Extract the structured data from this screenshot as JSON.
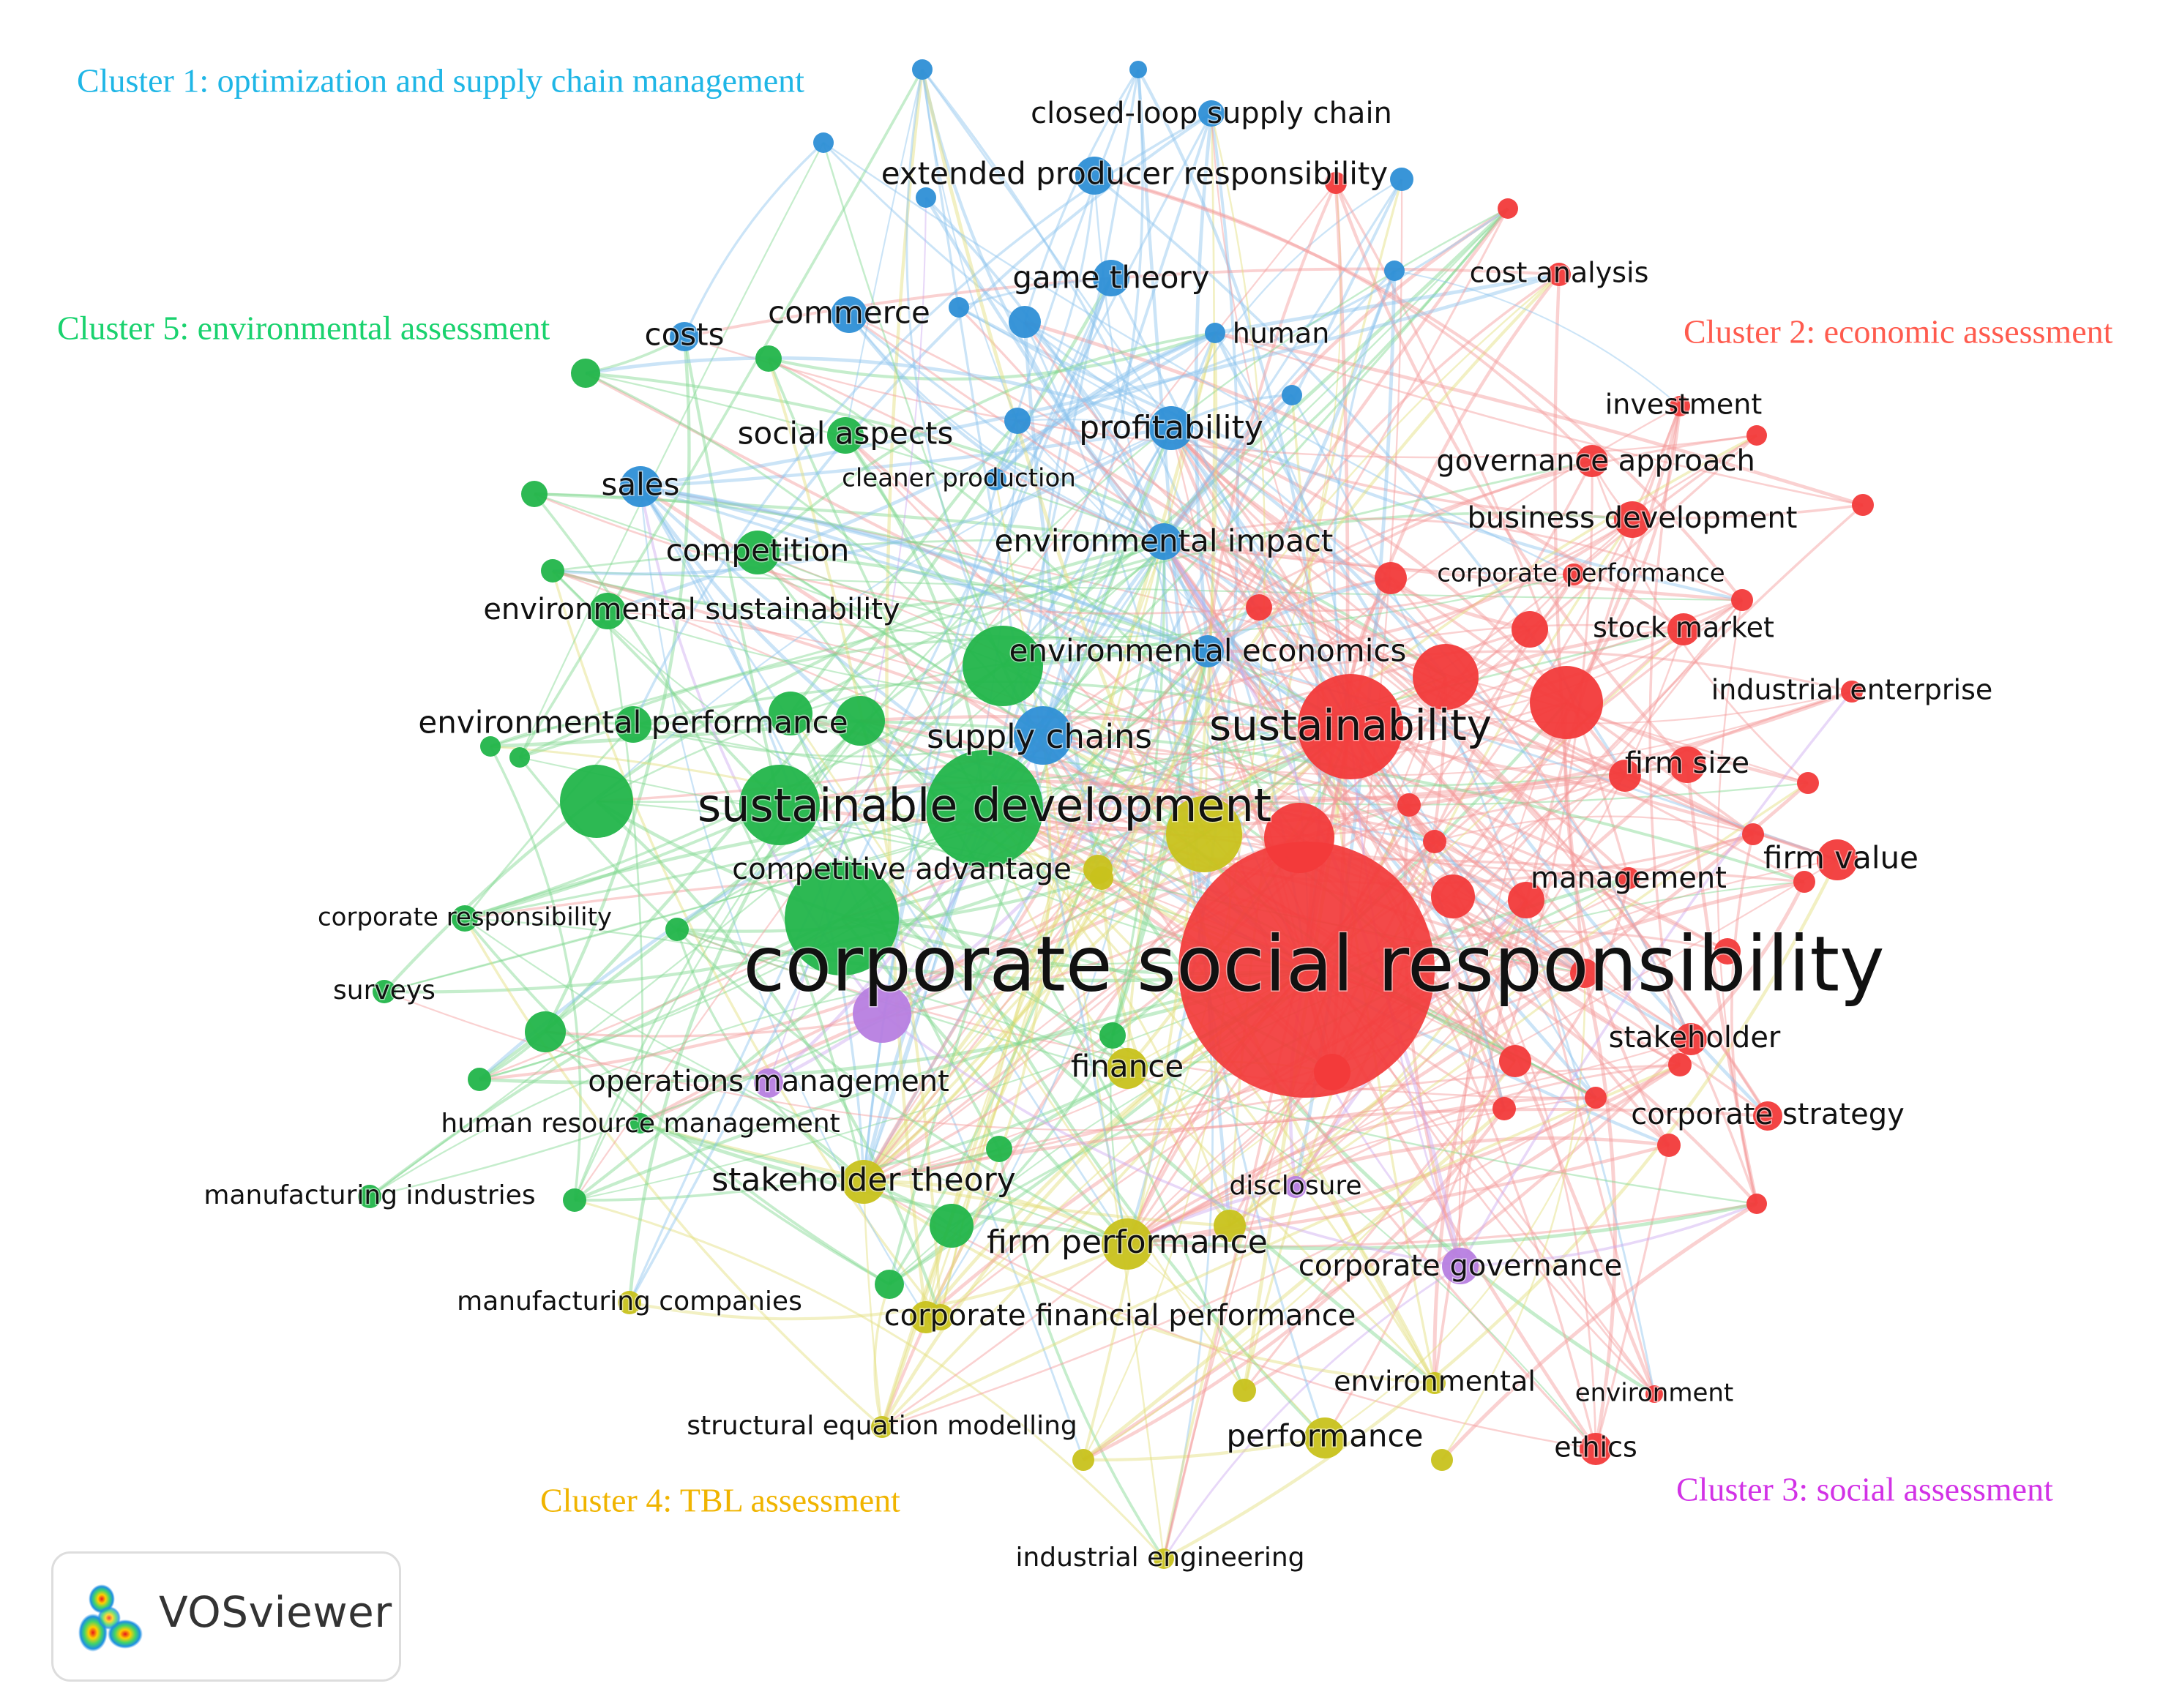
{
  "clusters": [
    {
      "id": 1,
      "label": "Cluster 1: optimization and supply chain management",
      "color": "#1fb6e6"
    },
    {
      "id": 2,
      "label": "Cluster 2: economic assessment",
      "color": "#ff5b4e"
    },
    {
      "id": 3,
      "label": "Cluster 3: social assessment",
      "color": "#d232e6"
    },
    {
      "id": 4,
      "label": "Cluster 4: TBL assessment",
      "color": "#f0b400"
    },
    {
      "id": 5,
      "label": "Cluster 5: environmental assessment",
      "color": "#1ad26e"
    }
  ],
  "node_colors": {
    "red": "#f23a3a",
    "green": "#22b54a",
    "blue": "#2e8fd6",
    "yellow": "#c8c21c",
    "purple": "#b77ee0"
  },
  "keywords": [
    {
      "label": "corporate social responsibility",
      "group": "red"
    },
    {
      "label": "sustainable development",
      "group": "green"
    },
    {
      "label": "sustainability",
      "group": "red"
    },
    {
      "label": "supply chains",
      "group": "blue"
    },
    {
      "label": "closed-loop supply chain",
      "group": "blue"
    },
    {
      "label": "extended producer responsibility",
      "group": "blue"
    },
    {
      "label": "game theory",
      "group": "blue"
    },
    {
      "label": "commerce",
      "group": "blue"
    },
    {
      "label": "costs",
      "group": "blue"
    },
    {
      "label": "human",
      "group": "blue"
    },
    {
      "label": "profitability",
      "group": "blue"
    },
    {
      "label": "social aspects",
      "group": "green"
    },
    {
      "label": "sales",
      "group": "blue"
    },
    {
      "label": "cleaner production",
      "group": "blue"
    },
    {
      "label": "competition",
      "group": "green"
    },
    {
      "label": "environmental impact",
      "group": "blue"
    },
    {
      "label": "environmental sustainability",
      "group": "green"
    },
    {
      "label": "environmental economics",
      "group": "blue"
    },
    {
      "label": "environmental performance",
      "group": "green"
    },
    {
      "label": "competitive advantage",
      "group": "yellow"
    },
    {
      "label": "corporate responsibility",
      "group": "green"
    },
    {
      "label": "surveys",
      "group": "green"
    },
    {
      "label": "operations management",
      "group": "purple"
    },
    {
      "label": "human resource management",
      "group": "green"
    },
    {
      "label": "manufacturing industries",
      "group": "green"
    },
    {
      "label": "stakeholder theory",
      "group": "yellow"
    },
    {
      "label": "finance",
      "group": "yellow"
    },
    {
      "label": "firm performance",
      "group": "yellow"
    },
    {
      "label": "disclosure",
      "group": "purple"
    },
    {
      "label": "corporate governance",
      "group": "purple"
    },
    {
      "label": "manufacturing companies",
      "group": "yellow"
    },
    {
      "label": "corporate financial performance",
      "group": "yellow"
    },
    {
      "label": "environmental",
      "group": "yellow"
    },
    {
      "label": "structural equation modelling",
      "group": "yellow"
    },
    {
      "label": "performance",
      "group": "yellow"
    },
    {
      "label": "industrial engineering",
      "group": "yellow"
    },
    {
      "label": "environment",
      "group": "red"
    },
    {
      "label": "ethics",
      "group": "red"
    },
    {
      "label": "cost analysis",
      "group": "red"
    },
    {
      "label": "investment",
      "group": "red"
    },
    {
      "label": "governance approach",
      "group": "red"
    },
    {
      "label": "business development",
      "group": "red"
    },
    {
      "label": "corporate performance",
      "group": "red"
    },
    {
      "label": "stock market",
      "group": "red"
    },
    {
      "label": "industrial enterprise",
      "group": "red"
    },
    {
      "label": "firm size",
      "group": "red"
    },
    {
      "label": "firm value",
      "group": "red"
    },
    {
      "label": "management",
      "group": "red"
    },
    {
      "label": "stakeholder",
      "group": "red"
    },
    {
      "label": "corporate strategy",
      "group": "red"
    }
  ],
  "badge": {
    "label": "VOSviewer",
    "logo_icon": "vosviewer-logo-icon"
  }
}
